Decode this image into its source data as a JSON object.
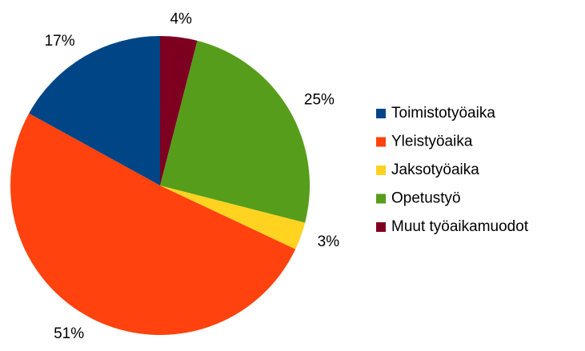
{
  "chart_data": {
    "type": "pie",
    "categories": [
      "Toimistotyöaika",
      "Yleistyöaika",
      "Jaksotyöaika",
      "Opetustyö",
      "Muut työaikamuodot"
    ],
    "values": [
      17,
      51,
      3,
      25,
      4
    ],
    "value_labels": [
      "17%",
      "51%",
      "3%",
      "25%",
      "4%"
    ],
    "colors": [
      "#004586",
      "#ff420e",
      "#ffd320",
      "#579d1c",
      "#7e0021"
    ]
  }
}
